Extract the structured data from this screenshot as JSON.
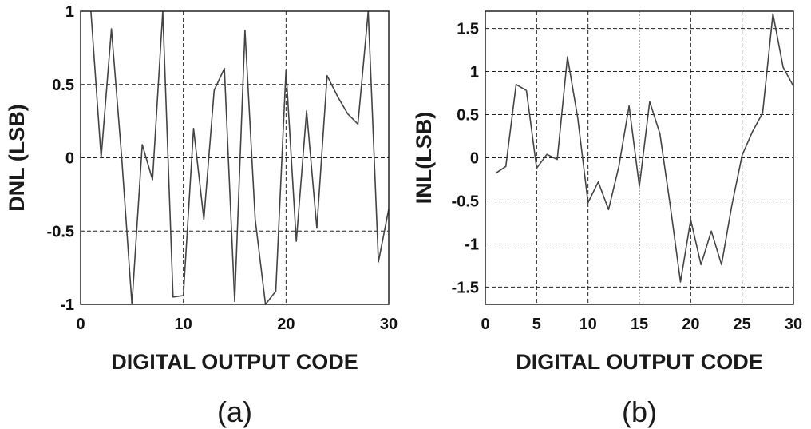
{
  "chart_data": [
    {
      "type": "line",
      "panel_label": "(a)",
      "xlabel": "DIGITAL OUTPUT CODE",
      "ylabel": "DNL (LSB)",
      "xlim": [
        0,
        30
      ],
      "ylim": [
        -1,
        1
      ],
      "xticks": [
        0,
        10,
        20,
        30
      ],
      "yticks": [
        1,
        0.5,
        0,
        -0.5,
        -1
      ],
      "xtick_labels": [
        "0",
        "10",
        "20",
        "30"
      ],
      "ytick_labels": [
        "1",
        "0.5",
        "0",
        "-0.5",
        "-1"
      ],
      "grid": true,
      "series": [
        {
          "x": [
            1,
            2,
            3,
            4,
            5,
            6,
            7,
            8,
            9,
            10,
            11,
            12,
            13,
            14,
            15,
            16,
            17,
            18,
            19,
            20,
            21,
            22,
            23,
            24,
            25,
            26,
            27,
            28,
            29,
            30
          ],
          "y": [
            1,
            0,
            0.88,
            0,
            -1,
            0.09,
            -0.15,
            1,
            -0.95,
            -0.94,
            0.2,
            -0.42,
            0.46,
            0.61,
            -0.98,
            0.87,
            -0.42,
            -1,
            -0.91,
            0.6,
            -0.57,
            0.32,
            -0.48,
            0.56,
            0.42,
            0.3,
            0.23,
            1,
            -0.71,
            -0.35
          ]
        }
      ]
    },
    {
      "type": "line",
      "panel_label": "(b)",
      "xlabel": "DIGITAL OUTPUT CODE",
      "ylabel": "INL(LSB)",
      "xlim": [
        0,
        30
      ],
      "ylim": [
        -1.7,
        1.7
      ],
      "xticks": [
        0,
        5,
        10,
        15,
        20,
        25,
        30
      ],
      "yticks": [
        1.5,
        1,
        0.5,
        0,
        -0.5,
        -1,
        -1.5
      ],
      "xtick_labels": [
        "0",
        "5",
        "10",
        "15",
        "20",
        "25",
        "30"
      ],
      "ytick_labels": [
        "1.5",
        "1",
        "0.5",
        "0",
        "-0.5",
        "-1",
        "-1.5"
      ],
      "grid": true,
      "series": [
        {
          "x": [
            1,
            2,
            3,
            4,
            5,
            6,
            7,
            8,
            9,
            10,
            11,
            12,
            13,
            14,
            15,
            16,
            17,
            18,
            19,
            20,
            21,
            22,
            23,
            24,
            25,
            26,
            27,
            28,
            29,
            30
          ],
          "y": [
            -0.18,
            -0.1,
            0.85,
            0.78,
            -0.12,
            0.04,
            -0.02,
            1.17,
            0.46,
            -0.52,
            -0.28,
            -0.6,
            -0.1,
            0.6,
            -0.33,
            0.65,
            0.28,
            -0.55,
            -1.44,
            -0.72,
            -1.24,
            -0.85,
            -1.24,
            -0.55,
            0.03,
            0.3,
            0.52,
            1.67,
            1.05,
            0.83
          ]
        }
      ]
    }
  ]
}
